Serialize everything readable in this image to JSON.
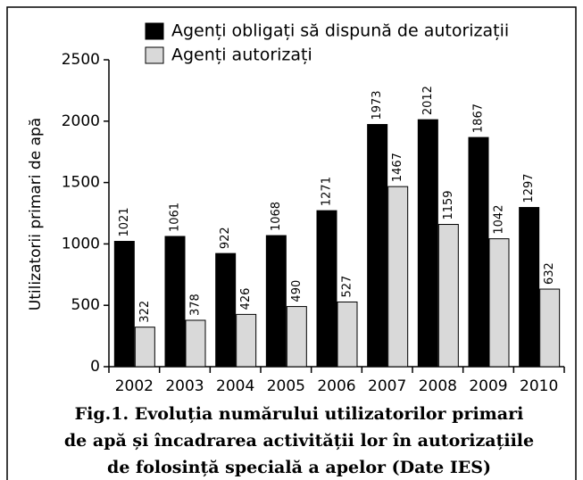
{
  "chart_data": {
    "type": "bar",
    "categories": [
      "2002",
      "2003",
      "2004",
      "2005",
      "2006",
      "2007",
      "2008",
      "2009",
      "2010"
    ],
    "series": [
      {
        "name": "Agenți obligați să dispună de autorizații",
        "color": "#000000",
        "values": [
          1021,
          1061,
          922,
          1068,
          1271,
          1973,
          2012,
          1867,
          1297
        ]
      },
      {
        "name": "Agenți autorizați",
        "color": "#d9d9d9",
        "values": [
          322,
          378,
          426,
          490,
          527,
          1467,
          1159,
          1042,
          632
        ]
      }
    ],
    "y_label": "Utilizatorii primari de apă",
    "ylim": [
      0,
      2500
    ],
    "yticks": [
      0,
      500,
      1000,
      1500,
      2000,
      2500
    ],
    "legend": "top",
    "caption": [
      "Fig.1. Evoluția numărului utilizatorilor primari",
      "de apă și încadrarea activității lor în autorizațiile",
      "de folosință specială a apelor (Date IES)"
    ]
  }
}
